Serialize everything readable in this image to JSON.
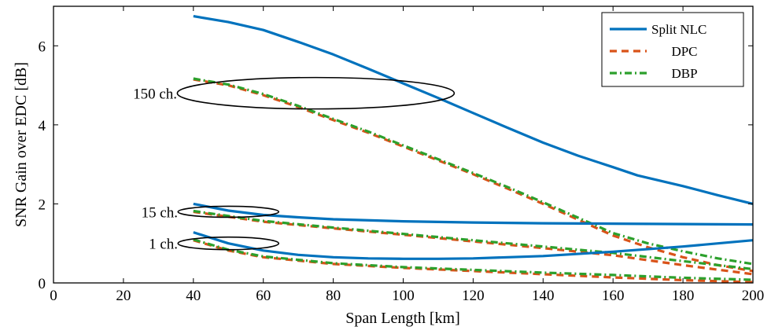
{
  "chart_data": {
    "type": "line",
    "title": "",
    "xlabel": "Span Length [km]",
    "ylabel": "SNR Gain over EDC [dB]",
    "xlim": [
      0,
      200
    ],
    "ylim": [
      0,
      7
    ],
    "xticks": [
      0,
      20,
      40,
      60,
      80,
      100,
      120,
      140,
      160,
      180,
      200
    ],
    "yticks": [
      0,
      2,
      4,
      6
    ],
    "grid": false,
    "legend_position": "top-right",
    "legend": [
      {
        "name": "Split NLC",
        "color": "#0072bd",
        "style": "solid"
      },
      {
        "name": "DPC",
        "color": "#d95319",
        "style": "dashed"
      },
      {
        "name": "DBP",
        "color": "#2ca02c",
        "style": "dashdot"
      }
    ],
    "annotations": [
      {
        "label": "150 ch.",
        "x": 75,
        "y": 4.8
      },
      {
        "label": "15 ch.",
        "x": 50,
        "y": 1.8
      },
      {
        "label": "1 ch.",
        "x": 50,
        "y": 1.0
      }
    ],
    "series": [
      {
        "name": "Split NLC",
        "group": "150 ch.",
        "color": "#0072bd",
        "style": "solid",
        "x": [
          40,
          50,
          60,
          70,
          80,
          90,
          100,
          110,
          120,
          130,
          140,
          150,
          160,
          167,
          180,
          190,
          200
        ],
        "y": [
          6.75,
          6.6,
          6.4,
          6.1,
          5.78,
          5.42,
          5.05,
          4.68,
          4.3,
          3.92,
          3.55,
          3.22,
          2.93,
          2.72,
          2.45,
          2.22,
          2.0
        ]
      },
      {
        "name": "DPC",
        "group": "150 ch.",
        "color": "#d95319",
        "style": "dashed",
        "x": [
          40,
          50,
          60,
          70,
          80,
          90,
          100,
          110,
          120,
          130,
          140,
          150,
          160,
          170,
          180,
          190,
          200
        ],
        "y": [
          5.15,
          5.0,
          4.75,
          4.45,
          4.12,
          3.8,
          3.45,
          3.1,
          2.75,
          2.38,
          2.0,
          1.6,
          1.2,
          0.9,
          0.65,
          0.45,
          0.3
        ]
      },
      {
        "name": "DBP",
        "group": "150 ch.",
        "color": "#2ca02c",
        "style": "dashdot",
        "x": [
          40,
          50,
          60,
          70,
          80,
          90,
          100,
          110,
          120,
          130,
          140,
          150,
          160,
          170,
          180,
          190,
          200
        ],
        "y": [
          5.17,
          5.02,
          4.78,
          4.48,
          4.15,
          3.83,
          3.48,
          3.13,
          2.78,
          2.42,
          2.04,
          1.65,
          1.26,
          1.0,
          0.8,
          0.62,
          0.48
        ]
      },
      {
        "name": "Split NLC",
        "group": "15 ch.",
        "color": "#0072bd",
        "style": "solid",
        "x": [
          40,
          50,
          60,
          70,
          80,
          100,
          120,
          140,
          160,
          180,
          200
        ],
        "y": [
          2.0,
          1.83,
          1.72,
          1.66,
          1.61,
          1.56,
          1.53,
          1.51,
          1.5,
          1.49,
          1.48
        ]
      },
      {
        "name": "DPC",
        "group": "15 ch.",
        "color": "#d95319",
        "style": "dashed",
        "x": [
          40,
          60,
          80,
          100,
          120,
          140,
          160,
          180,
          200
        ],
        "y": [
          1.8,
          1.55,
          1.38,
          1.22,
          1.05,
          0.88,
          0.7,
          0.45,
          0.22
        ]
      },
      {
        "name": "DBP",
        "group": "15 ch.",
        "color": "#2ca02c",
        "style": "dashdot",
        "x": [
          40,
          60,
          80,
          100,
          120,
          140,
          160,
          180,
          200
        ],
        "y": [
          1.82,
          1.57,
          1.4,
          1.24,
          1.08,
          0.92,
          0.76,
          0.55,
          0.35
        ]
      },
      {
        "name": "Split NLC",
        "group": "1 ch.",
        "color": "#0072bd",
        "style": "solid",
        "x": [
          40,
          50,
          60,
          70,
          80,
          90,
          100,
          110,
          120,
          140,
          160,
          180,
          200
        ],
        "y": [
          1.28,
          1.0,
          0.82,
          0.71,
          0.65,
          0.62,
          0.61,
          0.61,
          0.62,
          0.68,
          0.79,
          0.92,
          1.08
        ]
      },
      {
        "name": "DPC",
        "group": "1 ch.",
        "color": "#d95319",
        "style": "dashed",
        "x": [
          40,
          50,
          60,
          80,
          100,
          120,
          140,
          160,
          180,
          200
        ],
        "y": [
          1.08,
          0.82,
          0.65,
          0.48,
          0.38,
          0.3,
          0.22,
          0.14,
          0.07,
          0.02
        ]
      },
      {
        "name": "DBP",
        "group": "1 ch.",
        "color": "#2ca02c",
        "style": "dashdot",
        "x": [
          40,
          50,
          60,
          80,
          100,
          120,
          140,
          160,
          180,
          200
        ],
        "y": [
          1.1,
          0.84,
          0.67,
          0.5,
          0.4,
          0.33,
          0.26,
          0.2,
          0.13,
          0.08
        ]
      }
    ]
  }
}
